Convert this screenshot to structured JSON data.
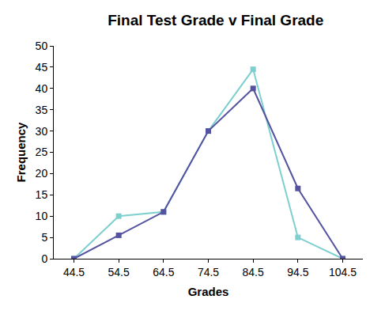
{
  "chart_data": {
    "type": "line",
    "title": "Final Test Grade v Final Grade",
    "x_label": "Grades",
    "y_label": "Frequency",
    "x": [
      44.5,
      54.5,
      64.5,
      74.5,
      84.5,
      94.5,
      104.5
    ],
    "series": [
      {
        "color": "#7ecfcf",
        "marker": "square",
        "values": [
          0,
          10,
          11,
          30,
          44.5,
          5,
          0
        ]
      },
      {
        "color": "#5553a0",
        "marker": "square",
        "values": [
          0,
          5.5,
          11,
          30,
          40,
          16.5,
          0
        ]
      }
    ],
    "xlim": [
      40,
      109
    ],
    "xticks": [
      44.5,
      54.5,
      64.5,
      74.5,
      84.5,
      94.5,
      104.5
    ],
    "ylim": [
      0,
      50
    ],
    "yticks": [
      0,
      5,
      10,
      15,
      20,
      25,
      30,
      35,
      40,
      45,
      50
    ],
    "grid": false
  }
}
